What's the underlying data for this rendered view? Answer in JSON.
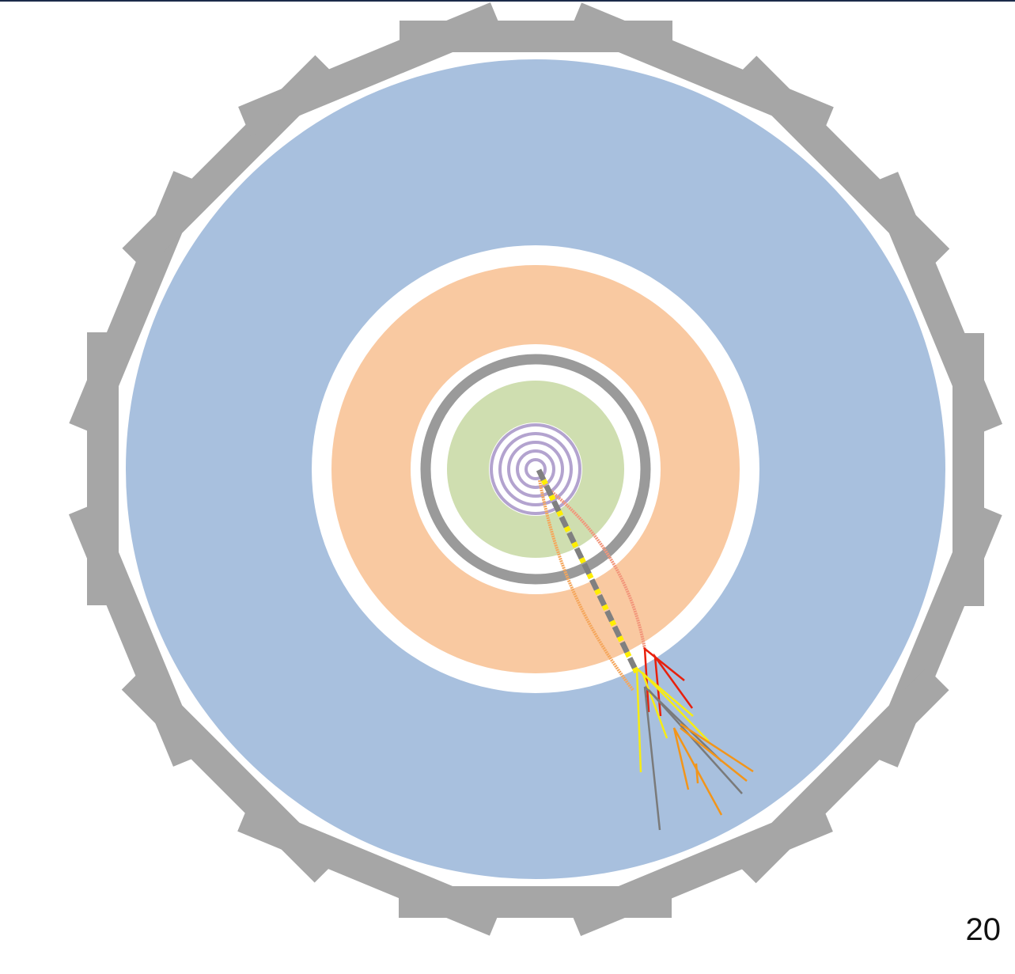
{
  "slide_number": 20
}
